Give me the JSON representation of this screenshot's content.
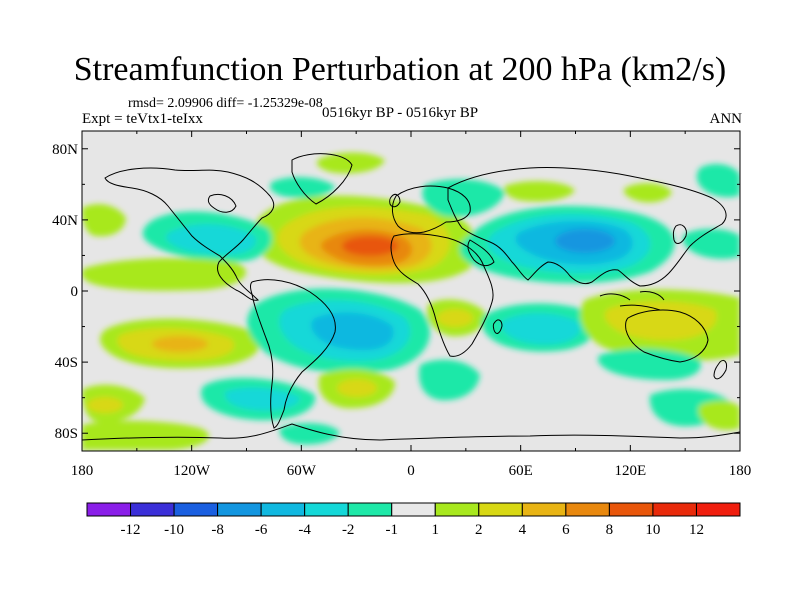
{
  "title": "Streamfunction Perturbation at 200 hPa (km2/s)",
  "subtitle": {
    "rmsd": "rmsd= 2.09906 diff= -1.25329e-08",
    "experiment": "Expt = teVtx1-teIxx",
    "period": "0516kyr BP - 0516kyr BP",
    "season": "ANN"
  },
  "map": {
    "lon_labels": [
      "180",
      "120W",
      "60W",
      "0",
      "60E",
      "120E",
      "180"
    ],
    "lon_values": [
      -180,
      -120,
      -60,
      0,
      60,
      120,
      180
    ],
    "lat_labels": [
      "80N",
      "40N",
      "0",
      "40S",
      "80S"
    ],
    "lat_values": [
      80,
      40,
      0,
      -40,
      -80
    ],
    "lon_range": [
      -180,
      180
    ],
    "lat_range": [
      -90,
      90
    ]
  },
  "colorbar": {
    "labels": [
      "-12",
      "-10",
      "-8",
      "-6",
      "-4",
      "-2",
      "-1",
      "1",
      "2",
      "4",
      "6",
      "8",
      "10",
      "12"
    ],
    "colors": [
      "#8a1ee8",
      "#3b2fd8",
      "#1a5fe0",
      "#1396e0",
      "#10b8e0",
      "#14d8d8",
      "#1ee8a8",
      "#e8e8e8",
      "#a8e81e",
      "#d8d814",
      "#e8b414",
      "#e8880e",
      "#e8560a",
      "#e82a0a",
      "#f01e0e"
    ]
  }
}
